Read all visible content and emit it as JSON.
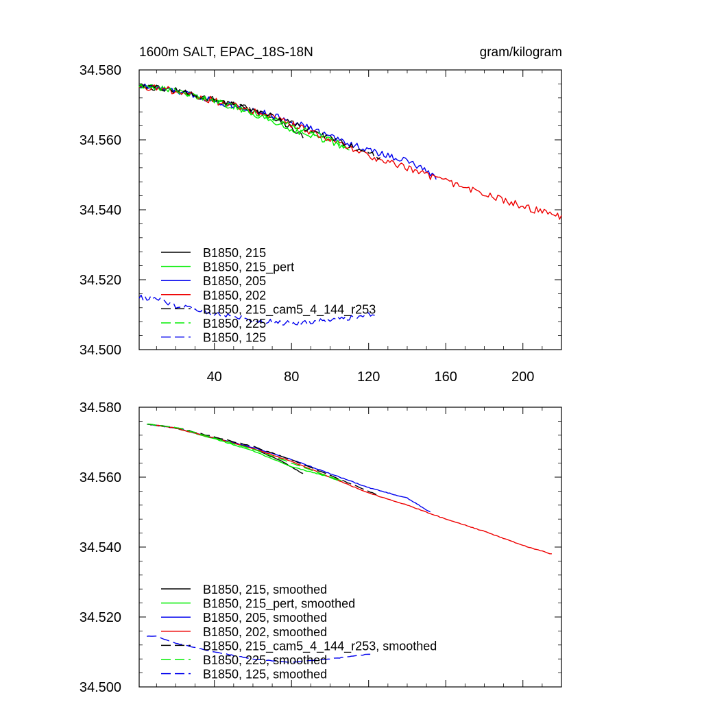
{
  "chart_data": [
    {
      "type": "line",
      "title_left": "1600m SALT, EPAC_18S-18N",
      "title_right": "gram/kilogram",
      "xlabel": "",
      "ylabel": "",
      "xlim": [
        1,
        220
      ],
      "ylim": [
        34.5,
        34.58
      ],
      "x_ticks": [
        40,
        80,
        120,
        160,
        200
      ],
      "x_tick_labels": [
        "40",
        "80",
        "120",
        "160",
        "200"
      ],
      "y_ticks": [
        34.5,
        34.52,
        34.54,
        34.56,
        34.58
      ],
      "y_tick_labels": [
        "34.500",
        "34.520",
        "34.540",
        "34.560",
        "34.580"
      ],
      "grid": false,
      "legend_position": "lower-left",
      "series": [
        {
          "name": "B1850, 215",
          "color": "#000000",
          "dash": "solid",
          "noise": 0.0008,
          "points": [
            [
              1,
              34.5755
            ],
            [
              20,
              34.574
            ],
            [
              40,
              34.5715
            ],
            [
              60,
              34.5685
            ],
            [
              80,
              34.5635
            ],
            [
              86,
              34.561
            ]
          ]
        },
        {
          "name": "B1850, 215_pert",
          "color": "#00ee00",
          "dash": "solid",
          "noise": 0.0008,
          "points": [
            [
              1,
              34.5755
            ],
            [
              20,
              34.574
            ],
            [
              40,
              34.571
            ],
            [
              60,
              34.5675
            ],
            [
              80,
              34.563
            ],
            [
              100,
              34.5595
            ],
            [
              110,
              34.557
            ]
          ]
        },
        {
          "name": "B1850, 205",
          "color": "#0000ee",
          "dash": "solid",
          "noise": 0.0009,
          "points": [
            [
              1,
              34.5755
            ],
            [
              20,
              34.574
            ],
            [
              40,
              34.5712
            ],
            [
              60,
              34.5685
            ],
            [
              80,
              34.5655
            ],
            [
              100,
              34.561
            ],
            [
              120,
              34.557
            ],
            [
              140,
              34.554
            ],
            [
              155,
              34.5495
            ]
          ]
        },
        {
          "name": "B1850, 202",
          "color": "#ee0000",
          "dash": "solid",
          "noise": 0.001,
          "points": [
            [
              1,
              34.5755
            ],
            [
              20,
              34.574
            ],
            [
              40,
              34.5712
            ],
            [
              60,
              34.5682
            ],
            [
              80,
              34.5645
            ],
            [
              100,
              34.56
            ],
            [
              120,
              34.5555
            ],
            [
              140,
              34.552
            ],
            [
              160,
              34.548
            ],
            [
              180,
              34.5445
            ],
            [
              200,
              34.541
            ],
            [
              215,
              34.5385
            ],
            [
              220,
              34.538
            ]
          ]
        },
        {
          "name": "B1850, 215_cam5_4_144_r253",
          "color": "#000000",
          "dash": "long",
          "noise": 0.0008,
          "points": [
            [
              1,
              34.5755
            ],
            [
              20,
              34.5742
            ],
            [
              40,
              34.5715
            ],
            [
              60,
              34.5688
            ],
            [
              80,
              34.565
            ],
            [
              100,
              34.5605
            ],
            [
              120,
              34.5565
            ],
            [
              126,
              34.5548
            ]
          ]
        },
        {
          "name": "B1850, 225",
          "color": "#00ee00",
          "dash": "long",
          "noise": 0.0008,
          "points": [
            [
              1,
              34.5755
            ],
            [
              20,
              34.5742
            ],
            [
              40,
              34.5712
            ],
            [
              60,
              34.568
            ],
            [
              80,
              34.564
            ],
            [
              100,
              34.5605
            ],
            [
              108,
              34.558
            ]
          ]
        },
        {
          "name": "B1850, 125",
          "color": "#0000ee",
          "dash": "long",
          "noise": 0.0007,
          "points": [
            [
              1,
              34.515
            ],
            [
              10,
              34.5145
            ],
            [
              20,
              34.5125
            ],
            [
              40,
              34.5105
            ],
            [
              60,
              34.5085
            ],
            [
              80,
              34.5075
            ],
            [
              100,
              34.5085
            ],
            [
              115,
              34.5095
            ],
            [
              125,
              34.5105
            ]
          ]
        }
      ]
    },
    {
      "type": "line",
      "title_left": "",
      "title_right": "",
      "xlabel": "",
      "ylabel": "",
      "xlim": [
        1,
        220
      ],
      "ylim": [
        34.5,
        34.58
      ],
      "x_ticks": [
        40,
        80,
        120,
        160,
        200
      ],
      "x_tick_labels": [],
      "y_ticks": [
        34.5,
        34.52,
        34.54,
        34.56,
        34.58
      ],
      "y_tick_labels": [
        "34.500",
        "34.520",
        "34.540",
        "34.560",
        "34.580"
      ],
      "grid": false,
      "legend_position": "lower-left",
      "series": [
        {
          "name": "B1850, 215, smoothed",
          "color": "#000000",
          "dash": "solid",
          "noise": 0.0001,
          "points": [
            [
              5,
              34.5752
            ],
            [
              20,
              34.574
            ],
            [
              40,
              34.5712
            ],
            [
              60,
              34.5682
            ],
            [
              75,
              34.5645
            ],
            [
              86,
              34.561
            ]
          ]
        },
        {
          "name": "B1850, 215_pert, smoothed",
          "color": "#00ee00",
          "dash": "solid",
          "noise": 0.0001,
          "points": [
            [
              5,
              34.5752
            ],
            [
              20,
              34.574
            ],
            [
              40,
              34.571
            ],
            [
              60,
              34.5675
            ],
            [
              80,
              34.563
            ],
            [
              100,
              34.56
            ],
            [
              106,
              34.559
            ]
          ]
        },
        {
          "name": "B1850, 205, smoothed",
          "color": "#0000ee",
          "dash": "solid",
          "noise": 0.0001,
          "points": [
            [
              5,
              34.5752
            ],
            [
              20,
              34.574
            ],
            [
              40,
              34.5712
            ],
            [
              60,
              34.5685
            ],
            [
              80,
              34.565
            ],
            [
              100,
              34.561
            ],
            [
              120,
              34.557
            ],
            [
              140,
              34.554
            ],
            [
              152,
              34.55
            ]
          ]
        },
        {
          "name": "B1850, 202, smoothed",
          "color": "#ee0000",
          "dash": "solid",
          "noise": 0.0001,
          "points": [
            [
              5,
              34.5752
            ],
            [
              20,
              34.574
            ],
            [
              40,
              34.5712
            ],
            [
              60,
              34.5682
            ],
            [
              80,
              34.5645
            ],
            [
              100,
              34.56
            ],
            [
              120,
              34.5555
            ],
            [
              140,
              34.552
            ],
            [
              160,
              34.548
            ],
            [
              180,
              34.5445
            ],
            [
              200,
              34.5405
            ],
            [
              215,
              34.538
            ]
          ]
        },
        {
          "name": "B1850, 215_cam5_4_144_r253, smoothed",
          "color": "#000000",
          "dash": "long",
          "noise": 0.0001,
          "points": [
            [
              5,
              34.5752
            ],
            [
              20,
              34.5742
            ],
            [
              40,
              34.5715
            ],
            [
              60,
              34.5688
            ],
            [
              80,
              34.565
            ],
            [
              100,
              34.5605
            ],
            [
              120,
              34.556
            ],
            [
              124,
              34.555
            ]
          ]
        },
        {
          "name": "B1850, 225, smoothed",
          "color": "#00ee00",
          "dash": "long",
          "noise": 0.0001,
          "points": [
            [
              5,
              34.5752
            ],
            [
              20,
              34.5742
            ],
            [
              40,
              34.5712
            ],
            [
              60,
              34.568
            ],
            [
              80,
              34.564
            ],
            [
              100,
              34.56
            ],
            [
              104,
              34.559
            ]
          ]
        },
        {
          "name": "B1850, 125, smoothed",
          "color": "#0000ee",
          "dash": "long",
          "noise": 0.0001,
          "points": [
            [
              5,
              34.5145
            ],
            [
              10,
              34.5145
            ],
            [
              20,
              34.5125
            ],
            [
              40,
              34.51
            ],
            [
              60,
              34.508
            ],
            [
              80,
              34.507
            ],
            [
              100,
              34.508
            ],
            [
              115,
              34.509
            ],
            [
              122,
              34.5095
            ]
          ]
        }
      ]
    }
  ]
}
